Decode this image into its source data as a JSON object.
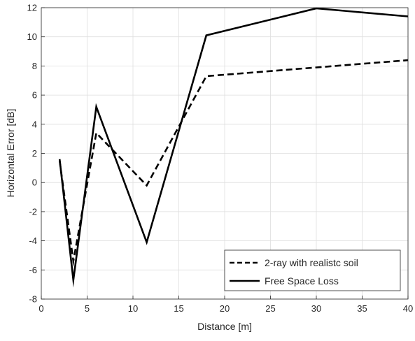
{
  "chart_data": {
    "type": "line",
    "title": "",
    "xlabel": "Distance [m]",
    "ylabel": "Horizontal Error [dB]",
    "xlim": [
      0,
      40
    ],
    "ylim": [
      -8,
      12
    ],
    "xticks": [
      0,
      5,
      10,
      15,
      20,
      25,
      30,
      35,
      40
    ],
    "yticks": [
      -8,
      -6,
      -4,
      -2,
      0,
      2,
      4,
      6,
      8,
      10,
      12
    ],
    "grid": true,
    "legend_position": "bottom-right",
    "series": [
      {
        "name": "2-ray with realistc soil",
        "style": "dashed",
        "color": "#000000",
        "x": [
          2,
          3.5,
          6,
          11.5,
          18,
          40
        ],
        "y": [
          1.5,
          -5.4,
          3.4,
          -0.2,
          7.3,
          8.4
        ]
      },
      {
        "name": "Free Space Loss",
        "style": "solid",
        "color": "#000000",
        "x": [
          2,
          3.5,
          6,
          11.5,
          18,
          30,
          40
        ],
        "y": [
          1.6,
          -6.7,
          5.2,
          -4.1,
          10.1,
          11.95,
          11.4
        ]
      }
    ]
  }
}
